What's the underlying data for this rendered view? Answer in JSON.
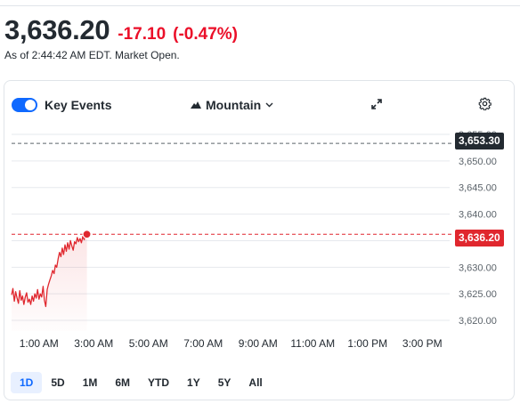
{
  "quote": {
    "price": "3,636.20",
    "change": "-17.10",
    "change_percent": "(-0.47%)",
    "market_time": "As of 2:44:42 AM EDT. Market Open."
  },
  "toolbar": {
    "key_events_label": "Key Events",
    "key_events_enabled": true,
    "chart_type_label": "Mountain",
    "icons": [
      "mountain-icon",
      "chevron-down-icon",
      "expand-icon",
      "gear-icon"
    ]
  },
  "colors": {
    "accent": "#0f69ff",
    "negative": "#eb0f29",
    "line": "#e0272e",
    "prev_close_badge": "#232a31",
    "text": "#232a31"
  },
  "range_tabs": [
    "1D",
    "5D",
    "1M",
    "6M",
    "YTD",
    "1Y",
    "5Y",
    "All"
  ],
  "active_range": "1D",
  "chart_data": {
    "type": "area",
    "title": "",
    "xlabel": "",
    "ylabel": "",
    "ylim": [
      3618,
      3656
    ],
    "y_ticks": [
      "3,655.00",
      "3,650.00",
      "3,645.00",
      "3,640.00",
      "3,635.00",
      "3,630.00",
      "3,625.00",
      "3,620.00"
    ],
    "y_tick_values": [
      3655,
      3650,
      3645,
      3640,
      3635,
      3630,
      3625,
      3620
    ],
    "x_ticks": [
      "1:00 AM",
      "3:00 AM",
      "5:00 AM",
      "7:00 AM",
      "9:00 AM",
      "11:00 AM",
      "1:00 PM",
      "3:00 PM"
    ],
    "x_tick_hours": [
      1,
      3,
      5,
      7,
      9,
      11,
      13,
      15
    ],
    "xlim_hours": [
      0.0,
      16.0
    ],
    "grid": true,
    "previous_close": "3,653.30",
    "previous_close_value": 3653.3,
    "current": "3,636.20",
    "current_value": 3636.2,
    "series": [
      {
        "x_hours": [
          0.0,
          0.05,
          0.1,
          0.15,
          0.2,
          0.25,
          0.3,
          0.35,
          0.4,
          0.45,
          0.5,
          0.55,
          0.6,
          0.65,
          0.7,
          0.75,
          0.8,
          0.85,
          0.9,
          0.95,
          1.0,
          1.05,
          1.1,
          1.15,
          1.2,
          1.25,
          1.3,
          1.35,
          1.4,
          1.45,
          1.5,
          1.55,
          1.6,
          1.65,
          1.7,
          1.75,
          1.8,
          1.85,
          1.9,
          1.95,
          2.0,
          2.05,
          2.1,
          2.15,
          2.2,
          2.25,
          2.3,
          2.35,
          2.4,
          2.45,
          2.5,
          2.55,
          2.6,
          2.65,
          2.7,
          2.75
        ],
        "values": [
          3624.8,
          3626.0,
          3623.6,
          3625.4,
          3624.2,
          3623.2,
          3625.6,
          3623.8,
          3624.6,
          3623.0,
          3624.4,
          3625.2,
          3623.4,
          3624.0,
          3623.0,
          3624.6,
          3623.6,
          3625.0,
          3624.2,
          3625.8,
          3624.0,
          3625.0,
          3624.4,
          3626.4,
          3623.8,
          3622.6,
          3625.8,
          3626.8,
          3627.6,
          3628.4,
          3629.4,
          3628.8,
          3630.4,
          3630.0,
          3631.6,
          3632.8,
          3632.0,
          3633.6,
          3632.4,
          3634.2,
          3633.0,
          3634.6,
          3633.4,
          3635.0,
          3634.0,
          3633.2,
          3634.8,
          3634.4,
          3635.6,
          3634.8,
          3635.4,
          3634.6,
          3635.8,
          3635.2,
          3636.0,
          3636.2
        ]
      }
    ]
  }
}
